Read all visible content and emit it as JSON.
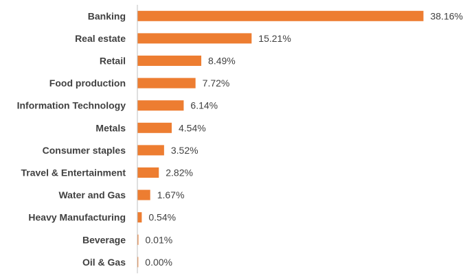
{
  "chart_data": {
    "type": "bar",
    "orientation": "horizontal",
    "title": "",
    "xlabel": "",
    "ylabel": "",
    "categories": [
      "Banking",
      "Real estate",
      "Retail",
      "Food production",
      "Information Technology",
      "Metals",
      "Consumer staples",
      "Travel & Entertainment",
      "Water and Gas",
      "Heavy Manufacturing",
      "Beverage",
      "Oil & Gas"
    ],
    "values": [
      38.16,
      15.21,
      8.49,
      7.72,
      6.14,
      4.54,
      3.52,
      2.82,
      1.67,
      0.54,
      0.01,
      0.0
    ],
    "value_labels": [
      "38.16%",
      "15.21%",
      "8.49%",
      "7.72%",
      "6.14%",
      "4.54%",
      "3.52%",
      "2.82%",
      "1.67%",
      "0.54%",
      "0.01%",
      "0.00%"
    ],
    "xlim": [
      0,
      38.16
    ],
    "grid": false,
    "legend": "none",
    "bar_color": "#ED7D31",
    "axis_color": "#BFBFBF",
    "text_color": "#404040"
  }
}
